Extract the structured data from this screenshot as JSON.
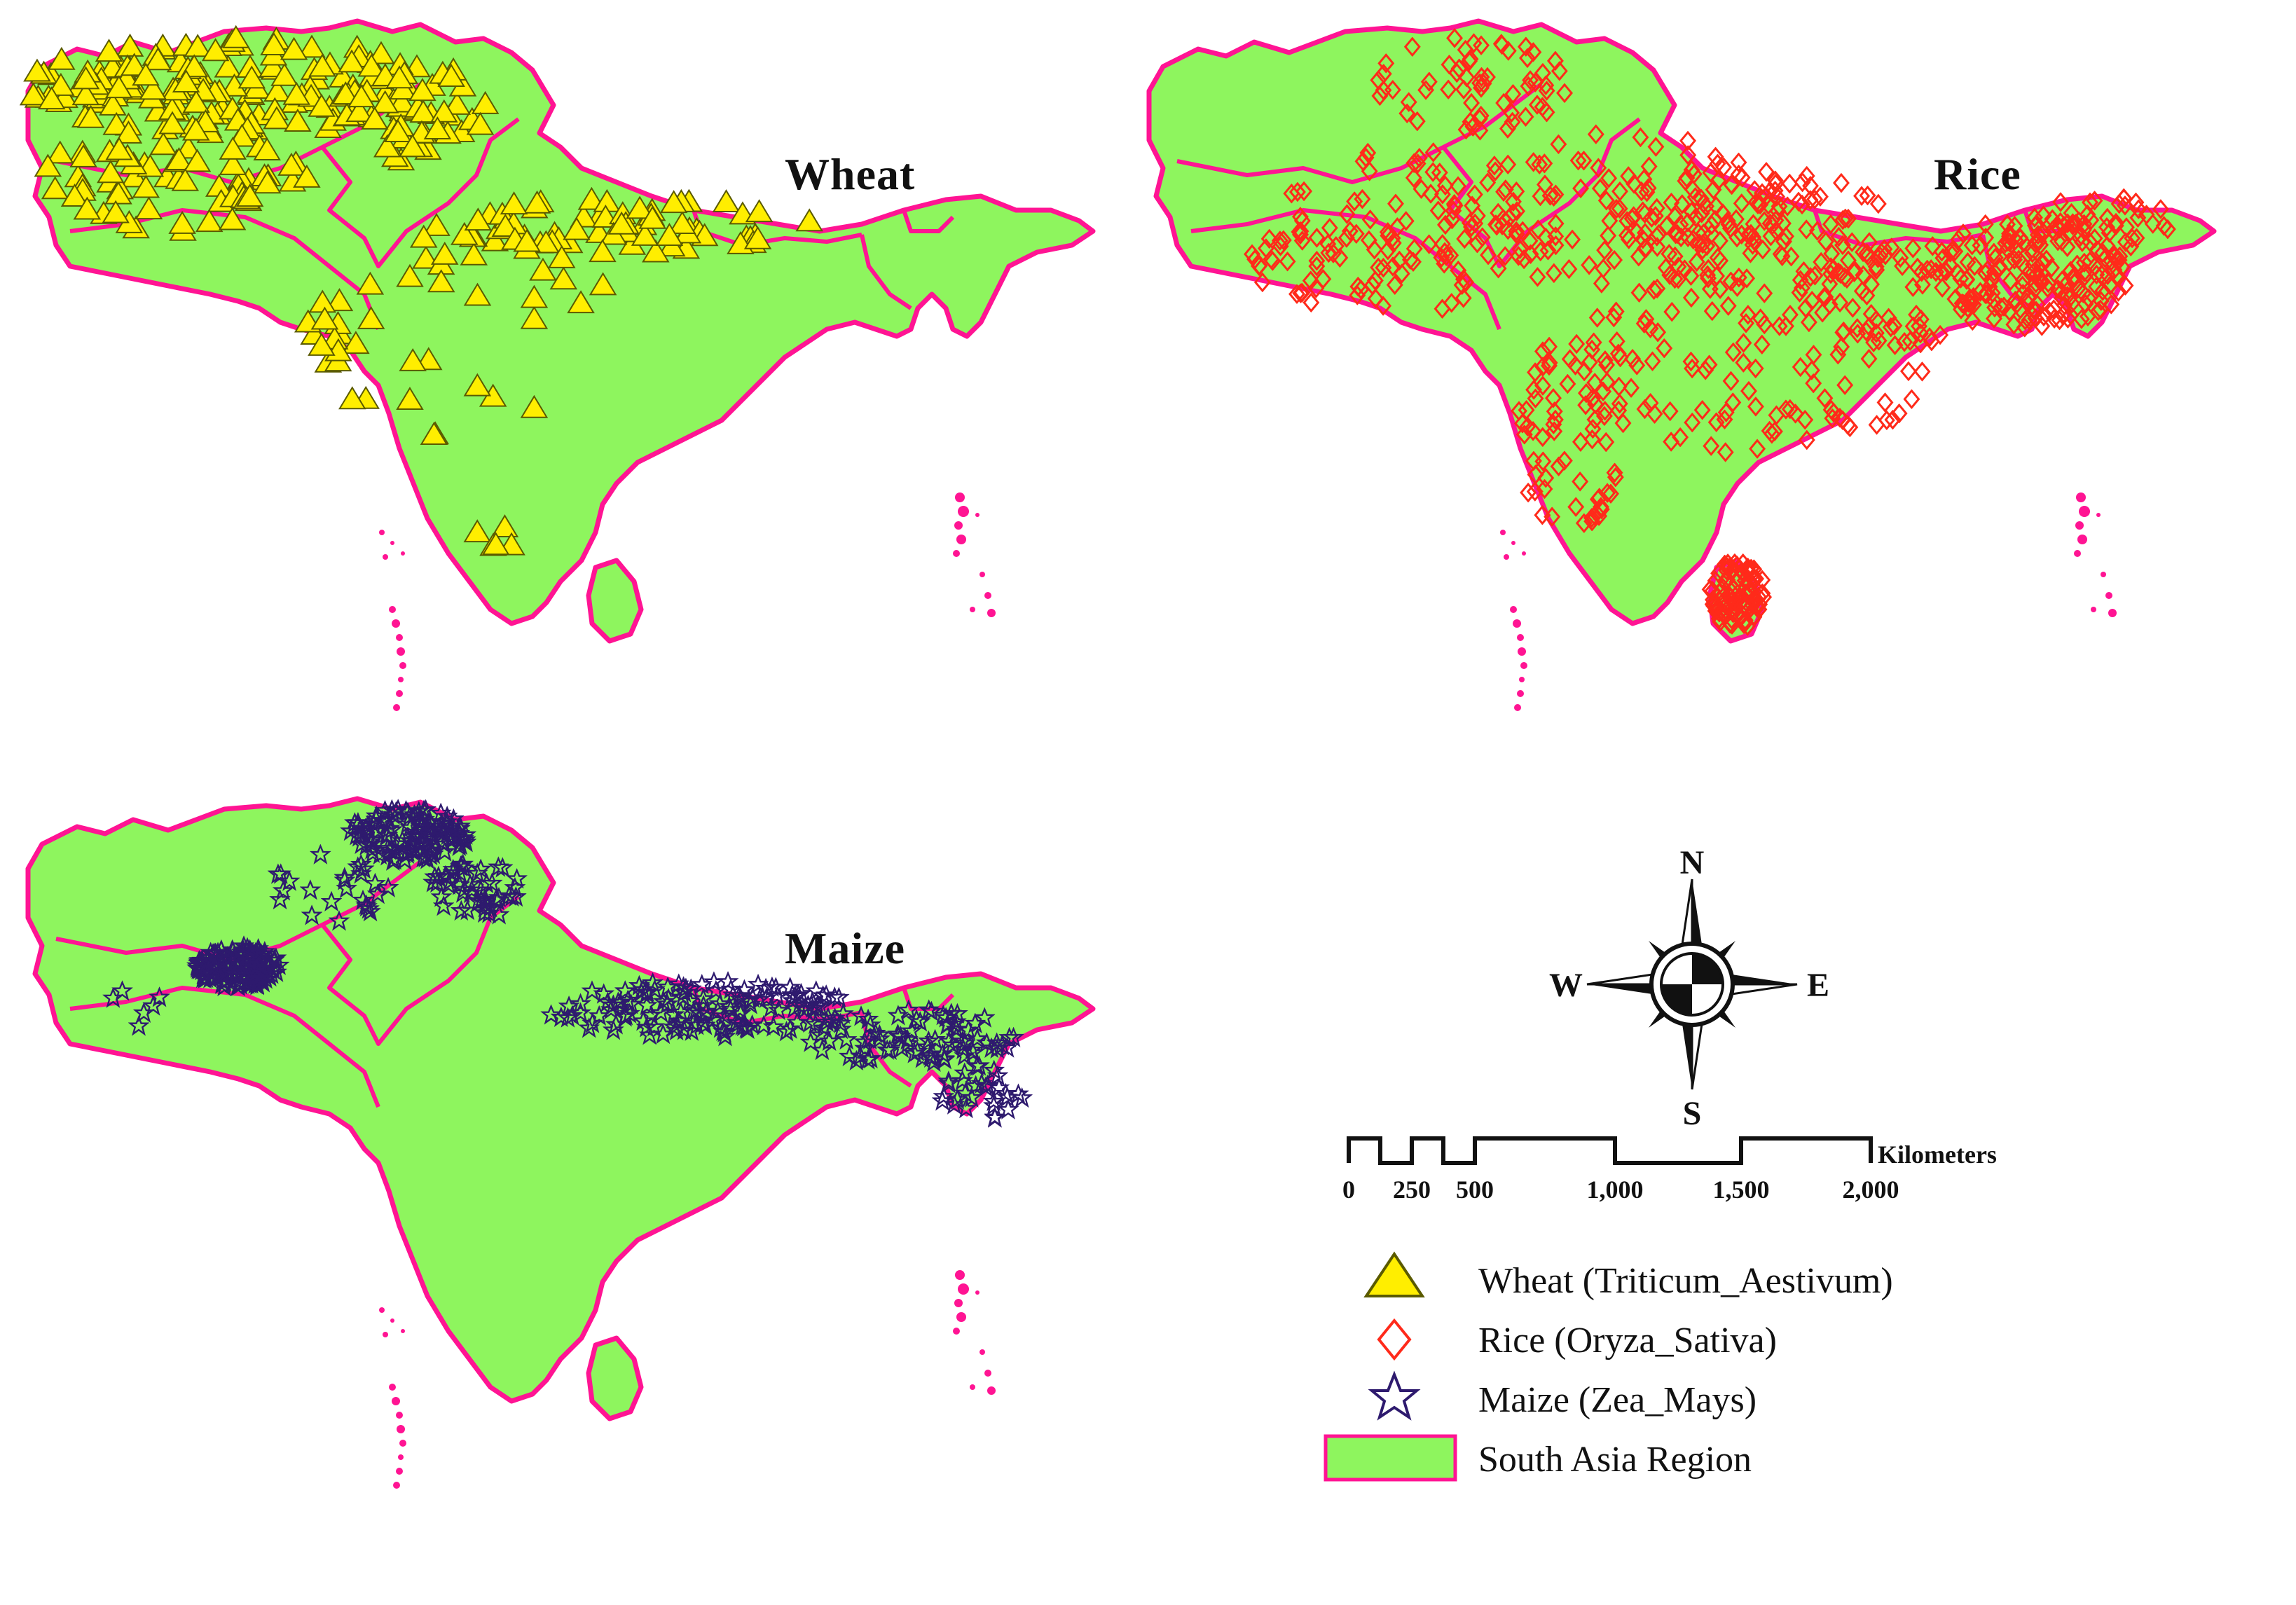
{
  "maps": [
    {
      "title": "Wheat",
      "crop": "wheat"
    },
    {
      "title": "Rice",
      "crop": "rice"
    },
    {
      "title": "Maize",
      "crop": "maize"
    }
  ],
  "compass": {
    "north": "N",
    "south": "S",
    "east": "E",
    "west": "W"
  },
  "scale_bar": {
    "unit": "Kilometers",
    "ticks": [
      "0",
      "250",
      "500",
      "1,000",
      "1,500",
      "2,000"
    ]
  },
  "legend": [
    {
      "label": "Wheat (Triticum_Aestivum)",
      "icon": "triangle-icon",
      "color": "#ffee00"
    },
    {
      "label": "Rice (Oryza_Sativa)",
      "icon": "diamond-icon",
      "color": "#ff2a1a"
    },
    {
      "label": "Maize (Zea_Mays)",
      "icon": "star-icon",
      "color": "#2e1a6e"
    },
    {
      "label": "South Asia Region",
      "icon": "region-swatch",
      "color": "#8ef55e"
    }
  ],
  "colors": {
    "land": "#8ef55e",
    "boundary": "#ff1493"
  }
}
